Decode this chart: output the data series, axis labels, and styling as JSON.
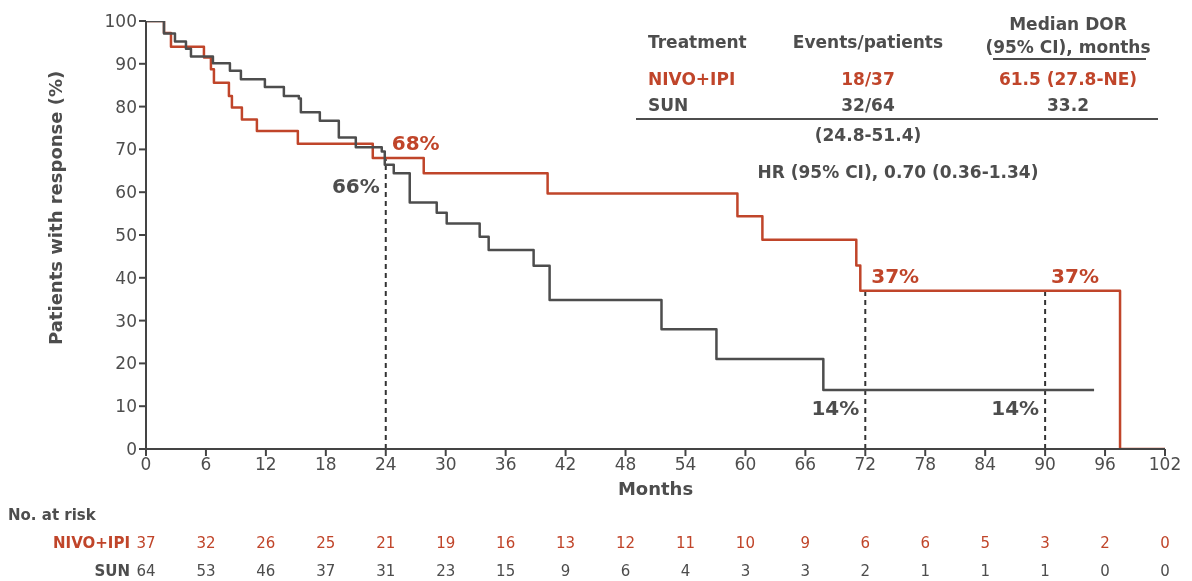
{
  "chart_data": {
    "type": "step",
    "xlabel": "Months",
    "ylabel": "Patients with response (%)",
    "xlim": [
      0,
      102
    ],
    "xticks": [
      0,
      6,
      12,
      18,
      24,
      30,
      36,
      42,
      48,
      54,
      60,
      66,
      72,
      78,
      84,
      90,
      96,
      102
    ],
    "ylim": [
      0,
      100
    ],
    "yticks": [
      0,
      10,
      20,
      30,
      40,
      50,
      60,
      70,
      80,
      90,
      100
    ],
    "series": [
      {
        "name": "NIVO+IPI",
        "color": "#c0452a",
        "x": [
          0,
          1.8,
          2.5,
          5.8,
          6.5,
          6.8,
          8.3,
          8.6,
          9.6,
          11.1,
          15.2,
          22.7,
          27.8,
          40.2,
          59.2,
          61.7,
          71.1,
          71.5,
          97.5,
          102
        ],
        "values": [
          100,
          97.2,
          94,
          91.5,
          88.7,
          85.6,
          82.5,
          79.8,
          77,
          74.3,
          71.3,
          68,
          64.4,
          59.7,
          54.4,
          48.9,
          42.9,
          37,
          0,
          0
        ]
      },
      {
        "name": "SUN",
        "color": "#4d4d4d",
        "x": [
          0,
          1.8,
          2.9,
          4.0,
          4.5,
          6.7,
          8.4,
          9.5,
          11.9,
          13.8,
          15.3,
          15.5,
          17.4,
          19.3,
          21.0,
          23.6,
          23.9,
          24.8,
          26.4,
          29.1,
          30.1,
          33.4,
          34.3,
          38.8,
          40.4,
          51.6,
          57.1,
          67.8,
          94.9
        ],
        "values": [
          100,
          97.1,
          95.2,
          93.5,
          91.7,
          90.1,
          88.4,
          86.4,
          84.6,
          82.5,
          81.9,
          78.7,
          76.7,
          72.8,
          70.5,
          69.5,
          66.4,
          64.4,
          57.6,
          55.2,
          52.7,
          49.6,
          46.5,
          42.8,
          34.8,
          28,
          21,
          13.8,
          13.8
        ]
      }
    ],
    "ref_lines": [
      {
        "axis": "x",
        "value": 24,
        "line_style": "dashed",
        "color": "#333333"
      },
      {
        "axis": "x",
        "value": 72,
        "line_style": "dashed",
        "color": "#333333"
      },
      {
        "axis": "x",
        "value": 90,
        "line_style": "dashed",
        "color": "#333333"
      }
    ],
    "annotations": [
      "Treatment",
      "Events/patients",
      "Median DOR",
      "(95% CI), months",
      "18/37",
      "61.5 (27.8-NE)",
      "32/64",
      "33.2",
      "(24.8-51.4)",
      "HR (95% CI), 0.70 (0.36-1.34)",
      "No. at risk",
      "37",
      "32",
      "26",
      "25",
      "21",
      "19",
      "16",
      "13",
      "12",
      "11",
      "10",
      "9",
      "6",
      "6",
      "5",
      "3",
      "2",
      "0",
      "64",
      "53",
      "46",
      "37",
      "31",
      "23",
      "15",
      "9",
      "6",
      "4",
      "3",
      "3",
      "2",
      "1",
      "1",
      "1",
      "0",
      "0",
      {
        "text": "68%",
        "x": 24,
        "y": 68
      },
      {
        "text": "66%",
        "x": 24,
        "y": 66
      },
      {
        "text": "37%",
        "x": 72,
        "y": 37
      },
      {
        "text": "37%",
        "x": 90,
        "y": 37
      },
      {
        "text": "14%",
        "x": 72,
        "y": 14
      },
      {
        "text": "14%",
        "x": 90,
        "y": 14
      }
    ]
  }
}
